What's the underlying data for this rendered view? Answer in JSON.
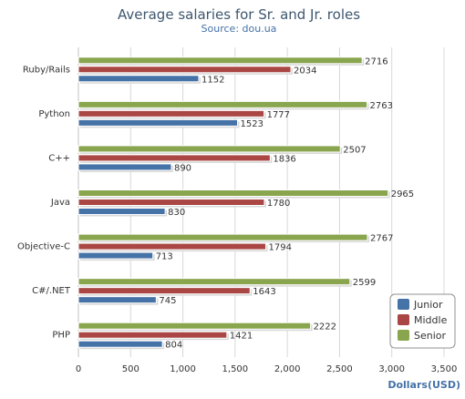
{
  "chart_data": {
    "type": "bar",
    "orientation": "horizontal",
    "title": "Average salaries for Sr. and Jr. roles",
    "subtitle": "Source: dou.ua",
    "xlabel": "Dollars(USD)",
    "ylabel": "",
    "xlim": [
      0,
      3500
    ],
    "ticks": [
      "0",
      "500",
      "1,000",
      "1,500",
      "2,000",
      "2,500",
      "3,000",
      "3,500"
    ],
    "grid": true,
    "legend_position": "bottom-right",
    "categories": [
      "Ruby/Rails",
      "Python",
      "C++",
      "Java",
      "Objective-C",
      "C#/.NET",
      "PHP"
    ],
    "series": [
      {
        "name": "Senior",
        "color": "#89a54e",
        "values": [
          2716,
          2763,
          2507,
          2965,
          2767,
          2599,
          2222
        ]
      },
      {
        "name": "Middle",
        "color": "#aa4643",
        "values": [
          2034,
          1777,
          1836,
          1780,
          1794,
          1643,
          1421
        ]
      },
      {
        "name": "Junior",
        "color": "#4572a7",
        "values": [
          1152,
          1523,
          890,
          830,
          713,
          745,
          804
        ]
      }
    ],
    "legend": [
      "Junior",
      "Middle",
      "Senior"
    ]
  }
}
